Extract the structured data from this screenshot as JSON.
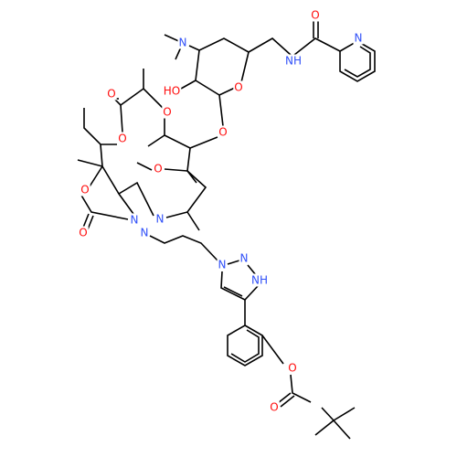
{
  "atoms": [
    {
      "label": "O",
      "color": "#ff0d0d"
    },
    {
      "label": "N",
      "color": "#3050f8"
    },
    {
      "label": "N",
      "color": "#3050f8"
    },
    {
      "label": "NH",
      "color": "#3050f8"
    },
    {
      "label": "HO",
      "color": "#ff0d0d"
    },
    {
      "label": "O",
      "color": "#ff0d0d"
    },
    {
      "label": "O",
      "color": "#ff0d0d"
    },
    {
      "label": "O",
      "color": "#ff0d0d"
    },
    {
      "label": "O",
      "color": "#ff0d0d"
    },
    {
      "label": "O",
      "color": "#ff0d0d"
    },
    {
      "label": "O",
      "color": "#ff0d0d"
    },
    {
      "label": "O",
      "color": "#ff0d0d"
    },
    {
      "label": "O",
      "color": "#ff0d0d"
    },
    {
      "label": "N",
      "color": "#3050f8"
    },
    {
      "label": "N",
      "color": "#3050f8"
    },
    {
      "label": "N",
      "color": "#3050f8"
    },
    {
      "label": "N",
      "color": "#3050f8"
    },
    {
      "label": "N",
      "color": "#3050f8"
    },
    {
      "label": "NH",
      "color": "#3050f8"
    },
    {
      "label": "O",
      "color": "#ff0d0d"
    },
    {
      "label": "O",
      "color": "#ff0d0d"
    }
  ]
}
